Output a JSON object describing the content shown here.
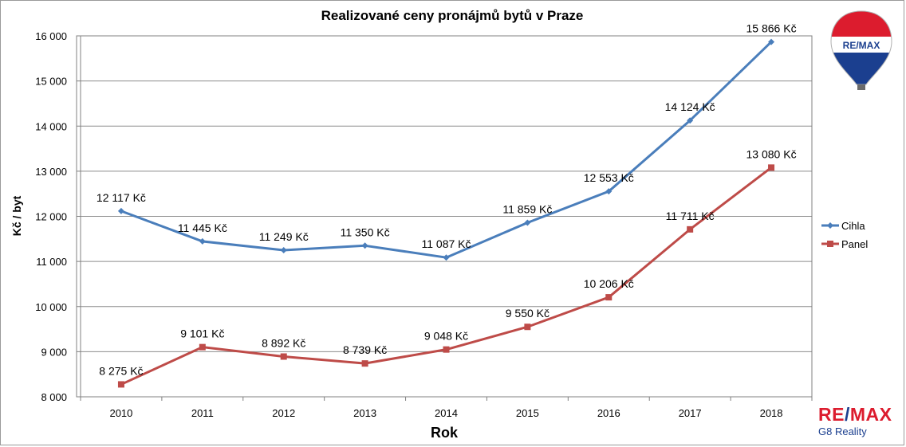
{
  "chart_data": {
    "type": "line",
    "title": "Realizované ceny pronájmů bytů v Praze",
    "xlabel": "Rok",
    "ylabel": "Kč / byt",
    "categories": [
      "2010",
      "2011",
      "2012",
      "2013",
      "2014",
      "2015",
      "2016",
      "2017",
      "2018"
    ],
    "ylim": [
      8000,
      16000
    ],
    "yticks": [
      8000,
      9000,
      10000,
      11000,
      12000,
      13000,
      14000,
      15000,
      16000
    ],
    "ytick_labels": [
      "8 000",
      "9 000",
      "10 000",
      "11 000",
      "12 000",
      "13 000",
      "14 000",
      "15 000",
      "16 000"
    ],
    "grid": true,
    "legend_position": "right",
    "series": [
      {
        "name": "Cihla",
        "color": "#4a7ebb",
        "marker": "diamond",
        "values": [
          12117,
          11445,
          11249,
          11350,
          11087,
          11859,
          12553,
          14124,
          15866
        ],
        "labels": [
          "12 117 Kč",
          "11 445 Kč",
          "11 249 Kč",
          "11 350 Kč",
          "11 087 Kč",
          "11 859 Kč",
          "12 553 Kč",
          "14 124 Kč",
          "15 866 Kč"
        ]
      },
      {
        "name": "Panel",
        "color": "#be4b48",
        "marker": "square",
        "values": [
          8275,
          9101,
          8892,
          8739,
          9048,
          9550,
          10206,
          11711,
          13080
        ],
        "labels": [
          "8 275 Kč",
          "9 101 Kč",
          "8 892 Kč",
          "8 739 Kč",
          "9 048 Kč",
          "9 550 Kč",
          "10 206 Kč",
          "11 711 Kč",
          "13 080 Kč"
        ]
      }
    ]
  },
  "balloon_logo": {
    "text": "RE/MAX",
    "colors": {
      "red": "#dc1c2e",
      "blue": "#1b3f8f",
      "white": "#ffffff"
    },
    "icon": "hot-air-balloon-icon"
  },
  "brand": {
    "logo_re": "RE",
    "logo_slash": "/",
    "logo_max": "MAX",
    "subtitle": "G8 Reality"
  }
}
